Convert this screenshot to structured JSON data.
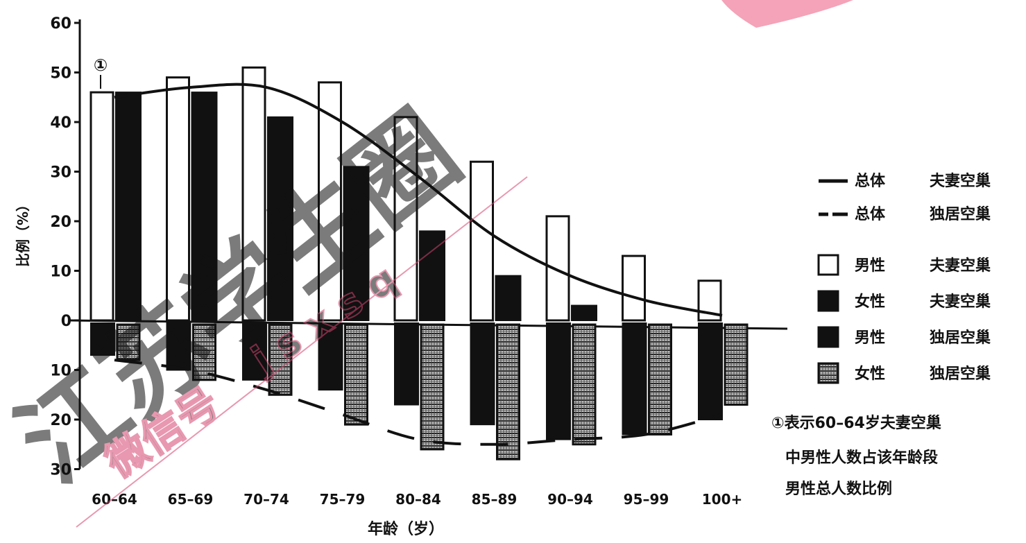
{
  "chart_data": {
    "type": "bar",
    "categories": [
      "60–64",
      "65–69",
      "70–74",
      "75–79",
      "80–84",
      "85–89",
      "90–94",
      "95–99",
      "100+"
    ],
    "xlabel": "年龄（岁）",
    "ylabel": "比例（%）",
    "y_ticks_up": [
      "60",
      "50",
      "40",
      "30",
      "20",
      "10",
      "0"
    ],
    "y_ticks_down": [
      "10",
      "20",
      "30"
    ],
    "ylim": [
      -30,
      60
    ],
    "grid": false,
    "legend_position": "right",
    "series": [
      {
        "name": "男性 夫妻空巢",
        "kind": "bar-up",
        "style": "white",
        "values": [
          46,
          49,
          51,
          48,
          41,
          32,
          21,
          13,
          8
        ]
      },
      {
        "name": "女性 夫妻空巢",
        "kind": "bar-up",
        "style": "black",
        "values": [
          46,
          46,
          41,
          31,
          18,
          9,
          3,
          0,
          0
        ]
      },
      {
        "name": "男性 独居空巢",
        "kind": "bar-down",
        "style": "black",
        "values": [
          7,
          10,
          12,
          14,
          17,
          21,
          24,
          23,
          20
        ]
      },
      {
        "name": "女性 独居空巢",
        "kind": "bar-down",
        "style": "hatched",
        "values": [
          8,
          12,
          15,
          21,
          26,
          28,
          25,
          23,
          17
        ]
      },
      {
        "name": "总体 夫妻空巢",
        "kind": "line-up",
        "style": "solid",
        "values": [
          45,
          47,
          47,
          40,
          29,
          17,
          9,
          4,
          1
        ]
      },
      {
        "name": "总体 独居空巢",
        "kind": "line-down",
        "style": "dashed",
        "values": [
          8,
          10,
          14,
          19,
          24,
          25,
          24,
          23,
          19
        ]
      }
    ],
    "legend": [
      {
        "group": "总体",
        "label": "夫妻空巢",
        "symbol": "solid-line"
      },
      {
        "group": "总体",
        "label": "独居空巢",
        "symbol": "dashed-line"
      },
      {
        "group": "男性",
        "label": "夫妻空巢",
        "symbol": "white-box"
      },
      {
        "group": "女性",
        "label": "夫妻空巢",
        "symbol": "black-box"
      },
      {
        "group": "男性",
        "label": "独居空巢",
        "symbol": "black-box"
      },
      {
        "group": "女性",
        "label": "独居空巢",
        "symbol": "hatched-box"
      }
    ],
    "annotation": {
      "marker": "①",
      "lines": [
        "①表示60–64岁夫妻空巢",
        "中男性人数占该年龄段",
        "男性总人数比例"
      ]
    }
  },
  "watermark": {
    "main": "江苏学生圈",
    "id": "jsxsq",
    "sub": "微信号"
  }
}
